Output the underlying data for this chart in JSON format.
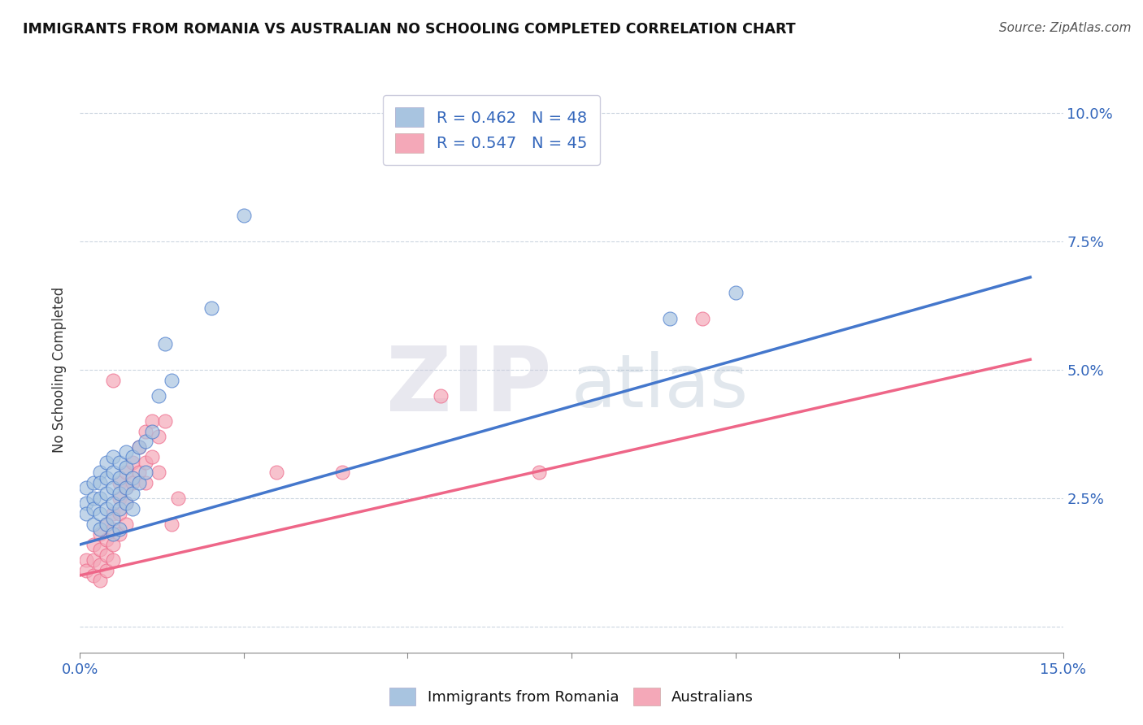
{
  "title": "IMMIGRANTS FROM ROMANIA VS AUSTRALIAN NO SCHOOLING COMPLETED CORRELATION CHART",
  "source": "Source: ZipAtlas.com",
  "ylabel": "No Schooling Completed",
  "xlim": [
    0.0,
    0.15
  ],
  "ylim": [
    -0.005,
    0.105
  ],
  "blue_color": "#A8C4E0",
  "pink_color": "#F4A8B8",
  "blue_line_color": "#4477CC",
  "pink_line_color": "#EE6688",
  "R_blue": 0.462,
  "N_blue": 48,
  "R_pink": 0.547,
  "N_pink": 45,
  "watermark_zip": "ZIP",
  "watermark_atlas": "atlas",
  "blue_scatter": [
    [
      0.001,
      0.027
    ],
    [
      0.001,
      0.024
    ],
    [
      0.001,
      0.022
    ],
    [
      0.002,
      0.028
    ],
    [
      0.002,
      0.025
    ],
    [
      0.002,
      0.023
    ],
    [
      0.002,
      0.02
    ],
    [
      0.003,
      0.03
    ],
    [
      0.003,
      0.028
    ],
    [
      0.003,
      0.025
    ],
    [
      0.003,
      0.022
    ],
    [
      0.003,
      0.019
    ],
    [
      0.004,
      0.032
    ],
    [
      0.004,
      0.029
    ],
    [
      0.004,
      0.026
    ],
    [
      0.004,
      0.023
    ],
    [
      0.004,
      0.02
    ],
    [
      0.005,
      0.033
    ],
    [
      0.005,
      0.03
    ],
    [
      0.005,
      0.027
    ],
    [
      0.005,
      0.024
    ],
    [
      0.005,
      0.021
    ],
    [
      0.005,
      0.018
    ],
    [
      0.006,
      0.032
    ],
    [
      0.006,
      0.029
    ],
    [
      0.006,
      0.026
    ],
    [
      0.006,
      0.023
    ],
    [
      0.006,
      0.019
    ],
    [
      0.007,
      0.034
    ],
    [
      0.007,
      0.031
    ],
    [
      0.007,
      0.027
    ],
    [
      0.007,
      0.024
    ],
    [
      0.008,
      0.033
    ],
    [
      0.008,
      0.029
    ],
    [
      0.008,
      0.026
    ],
    [
      0.008,
      0.023
    ],
    [
      0.009,
      0.035
    ],
    [
      0.009,
      0.028
    ],
    [
      0.01,
      0.036
    ],
    [
      0.01,
      0.03
    ],
    [
      0.011,
      0.038
    ],
    [
      0.012,
      0.045
    ],
    [
      0.013,
      0.055
    ],
    [
      0.014,
      0.048
    ],
    [
      0.02,
      0.062
    ],
    [
      0.025,
      0.08
    ],
    [
      0.09,
      0.06
    ],
    [
      0.1,
      0.065
    ]
  ],
  "pink_scatter": [
    [
      0.001,
      0.013
    ],
    [
      0.001,
      0.011
    ],
    [
      0.002,
      0.016
    ],
    [
      0.002,
      0.013
    ],
    [
      0.002,
      0.01
    ],
    [
      0.003,
      0.018
    ],
    [
      0.003,
      0.015
    ],
    [
      0.003,
      0.012
    ],
    [
      0.003,
      0.009
    ],
    [
      0.004,
      0.02
    ],
    [
      0.004,
      0.017
    ],
    [
      0.004,
      0.014
    ],
    [
      0.004,
      0.011
    ],
    [
      0.005,
      0.022
    ],
    [
      0.005,
      0.019
    ],
    [
      0.005,
      0.016
    ],
    [
      0.005,
      0.013
    ],
    [
      0.005,
      0.048
    ],
    [
      0.006,
      0.028
    ],
    [
      0.006,
      0.025
    ],
    [
      0.006,
      0.022
    ],
    [
      0.006,
      0.018
    ],
    [
      0.007,
      0.03
    ],
    [
      0.007,
      0.027
    ],
    [
      0.007,
      0.024
    ],
    [
      0.007,
      0.02
    ],
    [
      0.008,
      0.032
    ],
    [
      0.008,
      0.028
    ],
    [
      0.009,
      0.035
    ],
    [
      0.009,
      0.03
    ],
    [
      0.01,
      0.038
    ],
    [
      0.01,
      0.032
    ],
    [
      0.01,
      0.028
    ],
    [
      0.011,
      0.04
    ],
    [
      0.011,
      0.033
    ],
    [
      0.012,
      0.037
    ],
    [
      0.012,
      0.03
    ],
    [
      0.013,
      0.04
    ],
    [
      0.014,
      0.02
    ],
    [
      0.015,
      0.025
    ],
    [
      0.03,
      0.03
    ],
    [
      0.04,
      0.03
    ],
    [
      0.055,
      0.045
    ],
    [
      0.07,
      0.03
    ],
    [
      0.095,
      0.06
    ]
  ],
  "blue_line": [
    [
      0.0,
      0.016
    ],
    [
      0.145,
      0.068
    ]
  ],
  "pink_line": [
    [
      0.0,
      0.01
    ],
    [
      0.145,
      0.052
    ]
  ]
}
